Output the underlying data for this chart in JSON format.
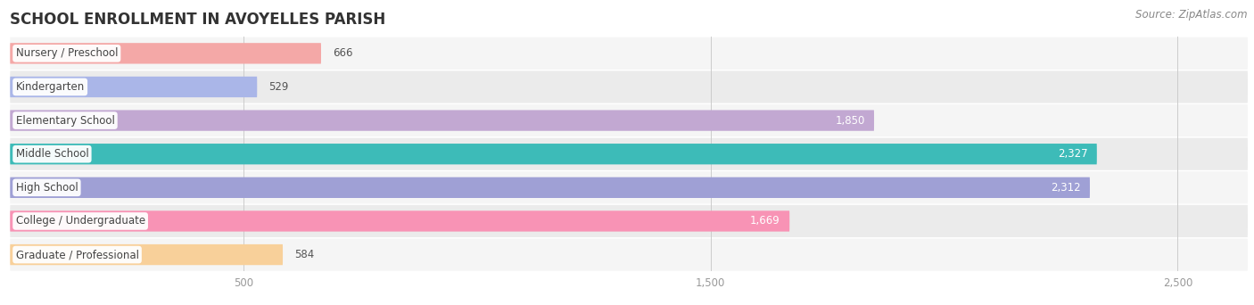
{
  "title": "SCHOOL ENROLLMENT IN AVOYELLES PARISH",
  "source": "Source: ZipAtlas.com",
  "categories": [
    "Nursery / Preschool",
    "Kindergarten",
    "Elementary School",
    "Middle School",
    "High School",
    "College / Undergraduate",
    "Graduate / Professional"
  ],
  "values": [
    666,
    529,
    1850,
    2327,
    2312,
    1669,
    584
  ],
  "bar_colors": [
    "#f4a8a7",
    "#aab6e8",
    "#c2a8d2",
    "#3dbbb8",
    "#9fa0d5",
    "#f893b5",
    "#f8d09a"
  ],
  "row_bg_even": "#f5f5f5",
  "row_bg_odd": "#ebebeb",
  "xlim_max": 2650,
  "xticks": [
    500,
    1500,
    2500
  ],
  "xtick_labels": [
    "500",
    "1,500",
    "2,500"
  ],
  "title_fontsize": 12,
  "label_fontsize": 8.5,
  "value_fontsize": 8.5,
  "source_fontsize": 8.5,
  "background_color": "#ffffff"
}
